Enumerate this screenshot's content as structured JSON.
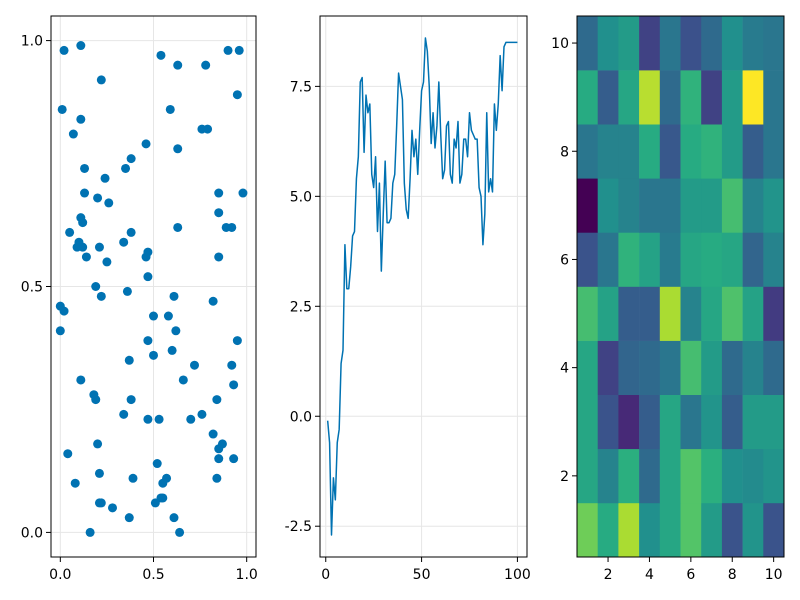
{
  "chart_data": [
    {
      "type": "scatter",
      "title": "",
      "xlabel": "",
      "ylabel": "",
      "xlim": [
        -0.05,
        1.05
      ],
      "ylim": [
        -0.05,
        1.05
      ],
      "xticks": [
        0.0,
        0.5,
        1.0
      ],
      "xtick_labels": [
        "0.0",
        "0.5",
        "1.0"
      ],
      "yticks": [
        0.0,
        0.5,
        1.0
      ],
      "ytick_labels": [
        "0.0",
        "0.5",
        "1.0"
      ],
      "grid": true,
      "color": "#0072b2",
      "points": [
        [
          0.02,
          0.98
        ],
        [
          0.11,
          0.99
        ],
        [
          0.22,
          0.92
        ],
        [
          0.54,
          0.97
        ],
        [
          0.63,
          0.95
        ],
        [
          0.78,
          0.95
        ],
        [
          0.9,
          0.98
        ],
        [
          0.96,
          0.98
        ],
        [
          0.01,
          0.86
        ],
        [
          0.11,
          0.84
        ],
        [
          0.07,
          0.81
        ],
        [
          0.59,
          0.86
        ],
        [
          0.95,
          0.89
        ],
        [
          0.76,
          0.82
        ],
        [
          0.79,
          0.82
        ],
        [
          0.46,
          0.79
        ],
        [
          0.63,
          0.78
        ],
        [
          0.38,
          0.76
        ],
        [
          0.35,
          0.74
        ],
        [
          0.13,
          0.74
        ],
        [
          0.24,
          0.72
        ],
        [
          0.13,
          0.69
        ],
        [
          0.2,
          0.68
        ],
        [
          0.26,
          0.67
        ],
        [
          0.85,
          0.69
        ],
        [
          0.98,
          0.69
        ],
        [
          0.11,
          0.64
        ],
        [
          0.12,
          0.63
        ],
        [
          0.85,
          0.65
        ],
        [
          0.89,
          0.62
        ],
        [
          0.92,
          0.62
        ],
        [
          0.63,
          0.62
        ],
        [
          0.38,
          0.61
        ],
        [
          0.05,
          0.61
        ],
        [
          0.1,
          0.59
        ],
        [
          0.12,
          0.58
        ],
        [
          0.09,
          0.58
        ],
        [
          0.21,
          0.58
        ],
        [
          0.34,
          0.59
        ],
        [
          0.47,
          0.57
        ],
        [
          0.46,
          0.56
        ],
        [
          0.14,
          0.56
        ],
        [
          0.25,
          0.55
        ],
        [
          0.85,
          0.56
        ],
        [
          0.47,
          0.52
        ],
        [
          0.19,
          0.5
        ],
        [
          0.22,
          0.48
        ],
        [
          0.36,
          0.49
        ],
        [
          0.61,
          0.48
        ],
        [
          0.82,
          0.47
        ],
        [
          0.0,
          0.46
        ],
        [
          0.02,
          0.45
        ],
        [
          0.5,
          0.44
        ],
        [
          0.58,
          0.44
        ],
        [
          0.0,
          0.41
        ],
        [
          0.62,
          0.41
        ],
        [
          0.95,
          0.39
        ],
        [
          0.47,
          0.39
        ],
        [
          0.6,
          0.37
        ],
        [
          0.5,
          0.36
        ],
        [
          0.37,
          0.35
        ],
        [
          0.72,
          0.34
        ],
        [
          0.92,
          0.34
        ],
        [
          0.11,
          0.31
        ],
        [
          0.66,
          0.31
        ],
        [
          0.93,
          0.3
        ],
        [
          0.18,
          0.28
        ],
        [
          0.19,
          0.27
        ],
        [
          0.38,
          0.27
        ],
        [
          0.84,
          0.27
        ],
        [
          0.76,
          0.24
        ],
        [
          0.34,
          0.24
        ],
        [
          0.47,
          0.23
        ],
        [
          0.53,
          0.23
        ],
        [
          0.7,
          0.23
        ],
        [
          0.82,
          0.2
        ],
        [
          0.2,
          0.18
        ],
        [
          0.87,
          0.18
        ],
        [
          0.85,
          0.17
        ],
        [
          0.85,
          0.15
        ],
        [
          0.93,
          0.15
        ],
        [
          0.04,
          0.16
        ],
        [
          0.52,
          0.14
        ],
        [
          0.21,
          0.12
        ],
        [
          0.39,
          0.11
        ],
        [
          0.57,
          0.11
        ],
        [
          0.55,
          0.1
        ],
        [
          0.84,
          0.11
        ],
        [
          0.08,
          0.1
        ],
        [
          0.21,
          0.06
        ],
        [
          0.22,
          0.06
        ],
        [
          0.28,
          0.05
        ],
        [
          0.54,
          0.07
        ],
        [
          0.55,
          0.07
        ],
        [
          0.51,
          0.06
        ],
        [
          0.37,
          0.03
        ],
        [
          0.61,
          0.03
        ],
        [
          0.16,
          0.0
        ],
        [
          0.64,
          0.0
        ]
      ]
    },
    {
      "type": "line",
      "title": "",
      "xlabel": "",
      "ylabel": "",
      "xlim": [
        -3,
        105
      ],
      "ylim": [
        -3.2,
        9.1
      ],
      "xticks": [
        0,
        50,
        100
      ],
      "xtick_labels": [
        "0",
        "50",
        "100"
      ],
      "yticks": [
        -2.5,
        0.0,
        2.5,
        5.0,
        7.5
      ],
      "ytick_labels": [
        "-2.5",
        "0.0",
        "2.5",
        "5.0",
        "7.5"
      ],
      "grid": true,
      "color": "#0072b2",
      "x": [
        1,
        2,
        3,
        4,
        5,
        6,
        7,
        8,
        9,
        10,
        11,
        12,
        13,
        14,
        15,
        16,
        17,
        18,
        19,
        20,
        21,
        22,
        23,
        24,
        25,
        26,
        27,
        28,
        29,
        30,
        31,
        32,
        33,
        34,
        35,
        36,
        37,
        38,
        39,
        40,
        41,
        42,
        43,
        44,
        45,
        46,
        47,
        48,
        49,
        50,
        51,
        52,
        53,
        54,
        55,
        56,
        57,
        58,
        59,
        60,
        61,
        62,
        63,
        64,
        65,
        66,
        67,
        68,
        69,
        70,
        71,
        72,
        73,
        74,
        75,
        76,
        77,
        78,
        79,
        80,
        81,
        82,
        83,
        84,
        85,
        86,
        87,
        88,
        89,
        90,
        91,
        92,
        93,
        94,
        95,
        96,
        97,
        98,
        99,
        100
      ],
      "y": [
        -0.1,
        -0.6,
        -2.7,
        -1.4,
        -1.9,
        -0.6,
        -0.3,
        1.2,
        1.5,
        3.9,
        2.9,
        2.9,
        3.4,
        4.1,
        4.2,
        5.4,
        5.9,
        7.6,
        7.7,
        6.0,
        7.3,
        6.9,
        7.1,
        5.5,
        5.2,
        5.9,
        4.2,
        5.3,
        3.3,
        4.6,
        5.8,
        4.4,
        4.4,
        4.5,
        5.3,
        5.5,
        6.6,
        7.8,
        7.5,
        7.2,
        5.3,
        4.7,
        4.5,
        5.4,
        6.5,
        5.9,
        6.3,
        5.5,
        6.5,
        7.4,
        7.6,
        8.6,
        8.3,
        7.5,
        6.2,
        6.9,
        6.1,
        6.6,
        7.6,
        6.4,
        5.4,
        5.6,
        6.6,
        6.7,
        5.5,
        5.3,
        6.3,
        6.1,
        6.7,
        5.3,
        5.5,
        6.3,
        6.3,
        5.9,
        6.9,
        6.5,
        6.4,
        6.3,
        6.3,
        5.2,
        5.0,
        3.9,
        4.6,
        6.9,
        5.1,
        5.4,
        5.1,
        7.1,
        6.5,
        7.1,
        8.2,
        7.4,
        8.4,
        8.5,
        8.5,
        8.5,
        8.5,
        8.5,
        8.5,
        8.5
      ]
    },
    {
      "type": "heatmap",
      "title": "",
      "xlabel": "",
      "ylabel": "",
      "xlim": [
        0.5,
        10.5
      ],
      "ylim": [
        0.5,
        10.5
      ],
      "xticks": [
        2,
        4,
        6,
        8,
        10
      ],
      "xtick_labels": [
        "2",
        "4",
        "6",
        "8",
        "10"
      ],
      "yticks": [
        2,
        4,
        6,
        8,
        10
      ],
      "ytick_labels": [
        "2",
        "4",
        "6",
        "8",
        "10"
      ],
      "colormap": "viridis",
      "vrange": [
        0,
        1
      ],
      "values_by_row_from_bottom": [
        [
          0.78,
          0.62,
          0.88,
          0.5,
          0.6,
          0.73,
          0.55,
          0.26,
          0.52,
          0.26
        ],
        [
          0.6,
          0.45,
          0.64,
          0.35,
          0.6,
          0.73,
          0.64,
          0.5,
          0.48,
          0.52
        ],
        [
          0.6,
          0.26,
          0.12,
          0.3,
          0.6,
          0.4,
          0.52,
          0.3,
          0.55,
          0.55
        ],
        [
          0.6,
          0.2,
          0.33,
          0.35,
          0.4,
          0.7,
          0.55,
          0.35,
          0.45,
          0.35
        ],
        [
          0.7,
          0.58,
          0.3,
          0.3,
          0.88,
          0.45,
          0.6,
          0.72,
          0.58,
          0.18
        ],
        [
          0.26,
          0.4,
          0.65,
          0.58,
          0.42,
          0.6,
          0.62,
          0.6,
          0.33,
          0.45
        ],
        [
          0.0,
          0.5,
          0.45,
          0.4,
          0.4,
          0.55,
          0.55,
          0.7,
          0.45,
          0.52
        ],
        [
          0.4,
          0.45,
          0.45,
          0.62,
          0.28,
          0.62,
          0.65,
          0.55,
          0.3,
          0.4
        ],
        [
          0.62,
          0.3,
          0.6,
          0.9,
          0.35,
          0.65,
          0.2,
          0.55,
          1.0,
          0.4
        ],
        [
          0.35,
          0.5,
          0.55,
          0.2,
          0.4,
          0.25,
          0.35,
          0.5,
          0.42,
          0.4
        ]
      ]
    }
  ]
}
